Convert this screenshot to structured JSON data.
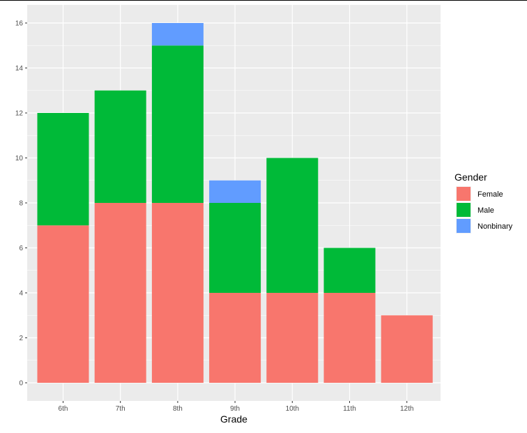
{
  "chart_data": {
    "type": "bar",
    "stacked": true,
    "categories": [
      "6th",
      "7th",
      "8th",
      "9th",
      "10th",
      "11th",
      "12th"
    ],
    "series": [
      {
        "name": "Female",
        "color": "#F8766D",
        "values": [
          7,
          8,
          8,
          4,
          4,
          4,
          3
        ]
      },
      {
        "name": "Male",
        "color": "#00BA38",
        "values": [
          5,
          5,
          7,
          4,
          6,
          2,
          0
        ]
      },
      {
        "name": "Nonbinary",
        "color": "#619CFF",
        "values": [
          0,
          0,
          1,
          1,
          0,
          0,
          0
        ]
      }
    ],
    "xlabel": "Grade",
    "ylabel": "",
    "ylim": [
      0,
      16
    ],
    "yticks": [
      0,
      2,
      4,
      6,
      8,
      10,
      12,
      14,
      16
    ],
    "grid": true,
    "legend": {
      "title": "Gender",
      "position": "right"
    },
    "panel_background": "#EBEBEB",
    "grid_color": "#FFFFFF"
  }
}
